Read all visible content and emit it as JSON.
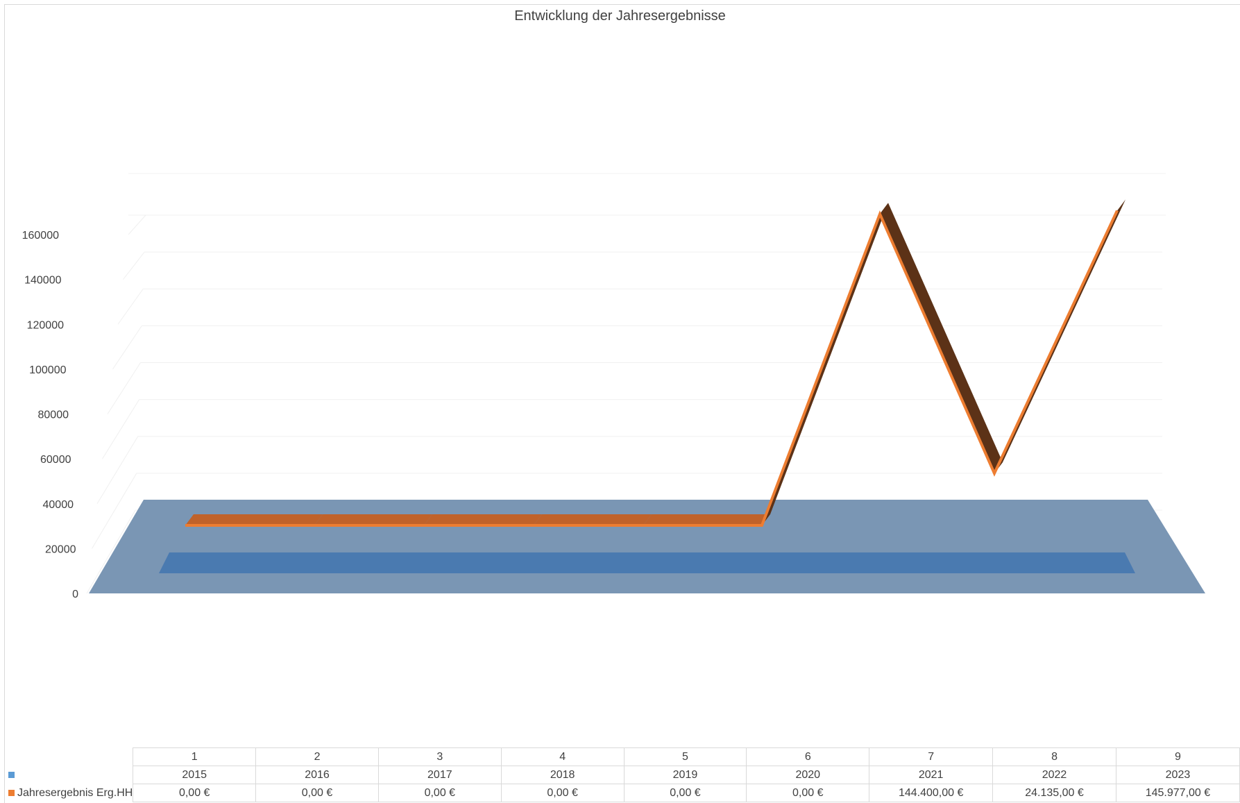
{
  "chart_data": {
    "type": "line",
    "title": "Entwicklung der Jahresergebnisse",
    "categories": [
      "1",
      "2",
      "3",
      "4",
      "5",
      "6",
      "7",
      "8",
      "9"
    ],
    "years": [
      "2015",
      "2016",
      "2017",
      "2018",
      "2019",
      "2020",
      "2021",
      "2022",
      "2023"
    ],
    "ylim": [
      0,
      160000
    ],
    "yticks": [
      "0",
      "20000",
      "40000",
      "60000",
      "80000",
      "100000",
      "120000",
      "140000",
      "160000"
    ],
    "grid": true,
    "legend": "table-bottom",
    "series": [
      {
        "name": "",
        "color": "#5b9bd5",
        "values": [
          2015,
          2016,
          2017,
          2018,
          2019,
          2020,
          2021,
          2022,
          2023
        ],
        "labels": [
          "2015",
          "2016",
          "2017",
          "2018",
          "2019",
          "2020",
          "2021",
          "2022",
          "2023"
        ]
      },
      {
        "name": "Jahresergebnis Erg.HH",
        "color": "#ed7d31",
        "values": [
          0,
          0,
          0,
          0,
          0,
          0,
          144400,
          24135,
          145977
        ],
        "labels": [
          "0,00 €",
          "0,00 €",
          "0,00 €",
          "0,00 €",
          "0,00 €",
          "0,00 €",
          "144.400,00 €",
          "24.135,00 €",
          "145.977,00 €"
        ]
      }
    ]
  },
  "colors": {
    "floor": "#7a96b4",
    "blue_ribbon": "#4a7ab0",
    "orange_ribbon": "#c0622a",
    "orange_shadow": "#5c3217",
    "gridline": "#f0f0f0"
  }
}
